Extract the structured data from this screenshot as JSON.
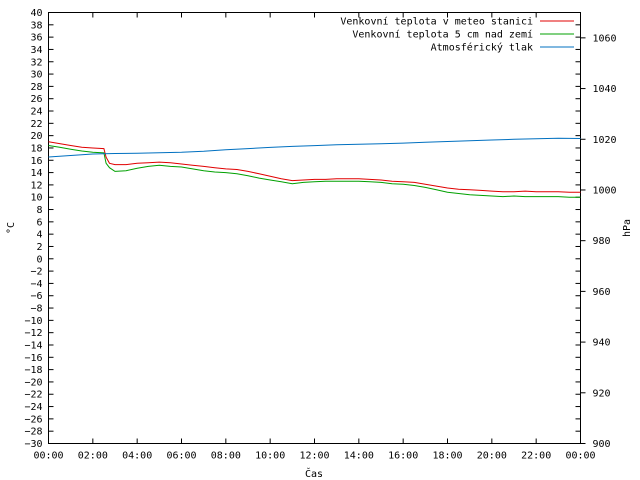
{
  "chart_data": {
    "type": "line",
    "xlabel": "Čas",
    "ylabel": "°C",
    "y2label": "hPa",
    "x_ticks": [
      "00:00",
      "02:00",
      "04:00",
      "06:00",
      "08:00",
      "10:00",
      "12:00",
      "14:00",
      "16:00",
      "18:00",
      "20:00",
      "22:00",
      "00:00"
    ],
    "xlim_hours": [
      0,
      24
    ],
    "ylim": [
      -30,
      40
    ],
    "y_ticks": [
      40,
      38,
      36,
      34,
      32,
      30,
      28,
      26,
      24,
      22,
      20,
      18,
      16,
      14,
      12,
      10,
      8,
      6,
      4,
      2,
      0,
      -2,
      -4,
      -6,
      -8,
      -10,
      -12,
      -14,
      -16,
      -18,
      -20,
      -22,
      -24,
      -26,
      -28,
      -30
    ],
    "y2lim": [
      900,
      1070
    ],
    "y2_ticks": [
      1060,
      1040,
      1020,
      1000,
      980,
      960,
      940,
      920,
      900
    ],
    "grid": false,
    "legend_position": "top-right",
    "series": [
      {
        "name": "Venkovní teplota v meteo stanici",
        "axis": "left",
        "color": "#e00000",
        "points": [
          [
            0,
            19.0
          ],
          [
            0.5,
            18.7
          ],
          [
            1.0,
            18.4
          ],
          [
            1.5,
            18.1
          ],
          [
            2.0,
            18.0
          ],
          [
            2.5,
            17.9
          ],
          [
            2.6,
            16.5
          ],
          [
            2.75,
            15.5
          ],
          [
            3.0,
            15.3
          ],
          [
            3.5,
            15.3
          ],
          [
            4.0,
            15.5
          ],
          [
            4.5,
            15.6
          ],
          [
            5.0,
            15.7
          ],
          [
            5.5,
            15.6
          ],
          [
            6.0,
            15.4
          ],
          [
            6.5,
            15.2
          ],
          [
            7.0,
            15.0
          ],
          [
            7.5,
            14.8
          ],
          [
            8.0,
            14.6
          ],
          [
            8.5,
            14.5
          ],
          [
            9.0,
            14.2
          ],
          [
            9.5,
            13.8
          ],
          [
            10.0,
            13.4
          ],
          [
            10.5,
            13.0
          ],
          [
            11.0,
            12.7
          ],
          [
            11.5,
            12.8
          ],
          [
            12.0,
            12.9
          ],
          [
            12.5,
            12.9
          ],
          [
            13.0,
            13.0
          ],
          [
            13.5,
            13.0
          ],
          [
            14.0,
            13.0
          ],
          [
            14.5,
            12.9
          ],
          [
            15.0,
            12.8
          ],
          [
            15.5,
            12.6
          ],
          [
            16.0,
            12.5
          ],
          [
            16.5,
            12.4
          ],
          [
            17.0,
            12.1
          ],
          [
            17.5,
            11.8
          ],
          [
            18.0,
            11.5
          ],
          [
            18.5,
            11.3
          ],
          [
            19.0,
            11.2
          ],
          [
            19.5,
            11.1
          ],
          [
            20.0,
            11.0
          ],
          [
            20.5,
            10.9
          ],
          [
            21.0,
            10.9
          ],
          [
            21.5,
            11.0
          ],
          [
            22.0,
            10.9
          ],
          [
            22.5,
            10.9
          ],
          [
            23.0,
            10.9
          ],
          [
            23.5,
            10.8
          ],
          [
            24.0,
            10.8
          ]
        ]
      },
      {
        "name": "Venkovní teplota 5 cm nad zemí",
        "axis": "left",
        "color": "#00a000",
        "points": [
          [
            0,
            18.4
          ],
          [
            0.5,
            18.1
          ],
          [
            1.0,
            17.8
          ],
          [
            1.5,
            17.5
          ],
          [
            2.0,
            17.3
          ],
          [
            2.5,
            17.2
          ],
          [
            2.6,
            15.5
          ],
          [
            2.75,
            14.8
          ],
          [
            3.0,
            14.2
          ],
          [
            3.5,
            14.3
          ],
          [
            4.0,
            14.7
          ],
          [
            4.5,
            15.0
          ],
          [
            5.0,
            15.2
          ],
          [
            5.5,
            15.0
          ],
          [
            6.0,
            14.9
          ],
          [
            6.5,
            14.6
          ],
          [
            7.0,
            14.3
          ],
          [
            7.5,
            14.1
          ],
          [
            8.0,
            14.0
          ],
          [
            8.5,
            13.8
          ],
          [
            9.0,
            13.5
          ],
          [
            9.5,
            13.1
          ],
          [
            10.0,
            12.8
          ],
          [
            10.5,
            12.5
          ],
          [
            11.0,
            12.2
          ],
          [
            11.5,
            12.4
          ],
          [
            12.0,
            12.5
          ],
          [
            12.5,
            12.6
          ],
          [
            13.0,
            12.6
          ],
          [
            13.5,
            12.6
          ],
          [
            14.0,
            12.6
          ],
          [
            14.5,
            12.5
          ],
          [
            15.0,
            12.4
          ],
          [
            15.5,
            12.2
          ],
          [
            16.0,
            12.1
          ],
          [
            16.5,
            11.9
          ],
          [
            17.0,
            11.6
          ],
          [
            17.5,
            11.2
          ],
          [
            18.0,
            10.8
          ],
          [
            18.5,
            10.6
          ],
          [
            19.0,
            10.4
          ],
          [
            19.5,
            10.3
          ],
          [
            20.0,
            10.2
          ],
          [
            20.5,
            10.1
          ],
          [
            21.0,
            10.2
          ],
          [
            21.5,
            10.1
          ],
          [
            22.0,
            10.1
          ],
          [
            22.5,
            10.1
          ],
          [
            23.0,
            10.1
          ],
          [
            23.5,
            10.0
          ],
          [
            24.0,
            10.0
          ]
        ]
      },
      {
        "name": "Atmosférický tlak",
        "axis": "right",
        "color": "#0070c0",
        "points": [
          [
            0,
            1013.0
          ],
          [
            1.0,
            1013.6
          ],
          [
            2.0,
            1014.2
          ],
          [
            3.0,
            1014.4
          ],
          [
            4.0,
            1014.5
          ],
          [
            5.0,
            1014.7
          ],
          [
            6.0,
            1014.9
          ],
          [
            7.0,
            1015.3
          ],
          [
            8.0,
            1015.9
          ],
          [
            9.0,
            1016.3
          ],
          [
            10.0,
            1016.8
          ],
          [
            11.0,
            1017.2
          ],
          [
            12.0,
            1017.5
          ],
          [
            13.0,
            1017.8
          ],
          [
            14.0,
            1018.0
          ],
          [
            15.0,
            1018.2
          ],
          [
            16.0,
            1018.5
          ],
          [
            17.0,
            1018.8
          ],
          [
            18.0,
            1019.1
          ],
          [
            19.0,
            1019.4
          ],
          [
            20.0,
            1019.7
          ],
          [
            21.0,
            1020.0
          ],
          [
            22.0,
            1020.2
          ],
          [
            23.0,
            1020.4
          ],
          [
            24.0,
            1020.3
          ]
        ]
      }
    ]
  }
}
